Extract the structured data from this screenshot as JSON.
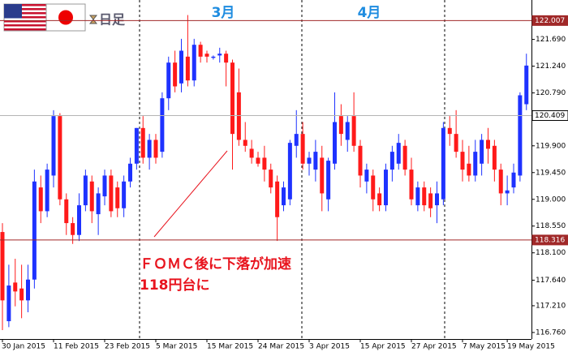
{
  "chart_data": {
    "type": "candlestick",
    "timeframe": "日足",
    "months": [
      "3月",
      "4月"
    ],
    "annotations": [
      "ＦＯＭＣ後に下落が加速",
      "118円台に"
    ],
    "categories": [
      "30 Jan 2015",
      null,
      null,
      null,
      null,
      null,
      null,
      null,
      "11 Feb 2015",
      null,
      null,
      null,
      null,
      null,
      null,
      null,
      "23 Feb 2015",
      null,
      null,
      null,
      null,
      null,
      null,
      null,
      "5 Mar 2015",
      null,
      null,
      null,
      null,
      null,
      null,
      null,
      "15 Mar 2015",
      null,
      null,
      null,
      null,
      null,
      null,
      null,
      "24 Mar 2015",
      null,
      null,
      null,
      null,
      null,
      null,
      null,
      "3 Apr 2015",
      null,
      null,
      null,
      null,
      null,
      null,
      null,
      "15 Apr 2015",
      null,
      null,
      null,
      null,
      null,
      null,
      null,
      "27 Apr 2015",
      null,
      null,
      null,
      null,
      null,
      null,
      null,
      "7 May 2015",
      null,
      null,
      null,
      null,
      null,
      null,
      "19 May 2015",
      null,
      null,
      null
    ],
    "open": [
      118.45,
      116.95,
      117.6,
      117.5,
      117.3,
      117.65,
      119.2,
      118.8,
      119.4,
      120.4,
      119.0,
      118.6,
      118.4,
      118.9,
      119.3,
      118.75,
      119.05,
      119.4,
      119.2,
      118.85,
      119.3,
      119.6,
      120.2,
      119.7,
      120.0,
      119.8,
      120.7,
      121.3,
      120.95,
      121.4,
      121.0,
      121.6,
      121.45,
      121.38,
      121.42,
      121.45,
      121.3,
      120.8,
      120.0,
      119.85,
      119.7,
      119.7,
      119.5,
      119.3,
      118.9,
      119.0,
      119.9,
      120.1,
      119.6,
      119.5,
      119.7,
      119.0,
      119.6,
      120.4,
      120.0,
      120.4,
      119.9,
      119.3,
      119.4,
      119.1,
      118.9,
      119.5,
      119.6,
      119.9,
      119.5,
      118.9,
      119.2,
      119.1,
      118.9,
      119.0,
      120.2,
      120.1,
      119.8,
      119.6,
      119.4,
      119.6,
      120.0,
      119.9,
      119.5,
      119.1,
      119.2,
      119.4,
      120.6
    ],
    "high": [
      118.6,
      117.9,
      118.0,
      117.9,
      117.9,
      119.5,
      119.4,
      119.6,
      120.5,
      120.45,
      119.1,
      118.7,
      119.1,
      119.5,
      119.4,
      119.2,
      119.5,
      119.5,
      119.3,
      119.4,
      119.7,
      120.2,
      120.4,
      120.1,
      120.1,
      120.8,
      121.4,
      121.5,
      121.7,
      122.1,
      121.7,
      121.65,
      121.5,
      121.42,
      121.55,
      121.5,
      121.35,
      121.2,
      120.3,
      120.0,
      119.8,
      119.9,
      119.6,
      119.4,
      119.3,
      120.0,
      120.5,
      120.3,
      119.8,
      120.0,
      119.9,
      119.7,
      120.8,
      120.6,
      120.4,
      120.8,
      120.0,
      119.6,
      119.5,
      119.2,
      119.6,
      119.9,
      120.1,
      120.0,
      119.7,
      119.3,
      119.3,
      119.2,
      119.3,
      120.3,
      120.4,
      120.5,
      120.0,
      119.9,
      120.0,
      120.1,
      120.2,
      120.0,
      119.6,
      119.4,
      119.6,
      120.8,
      121.45
    ],
    "low": [
      116.8,
      116.85,
      117.2,
      117.0,
      117.1,
      117.5,
      118.6,
      118.7,
      119.2,
      118.9,
      118.4,
      118.25,
      118.3,
      118.8,
      118.6,
      118.4,
      118.9,
      118.7,
      118.7,
      118.7,
      119.2,
      119.5,
      119.6,
      119.5,
      119.6,
      119.7,
      120.5,
      120.8,
      120.8,
      120.9,
      120.9,
      121.3,
      121.3,
      121.35,
      121.3,
      120.9,
      119.5,
      119.9,
      119.8,
      119.6,
      119.55,
      119.3,
      119.1,
      118.3,
      118.8,
      118.9,
      119.7,
      119.5,
      119.4,
      119.3,
      118.8,
      118.8,
      119.5,
      119.9,
      119.8,
      119.8,
      119.2,
      119.1,
      118.8,
      118.8,
      118.8,
      119.3,
      119.5,
      119.4,
      118.9,
      118.8,
      118.8,
      118.7,
      118.6,
      118.9,
      119.9,
      119.7,
      119.3,
      119.3,
      119.3,
      119.4,
      119.6,
      119.3,
      118.9,
      118.9,
      119.1,
      119.3,
      120.5
    ],
    "close": [
      117.3,
      117.55,
      117.45,
      117.3,
      117.65,
      119.3,
      118.8,
      119.5,
      120.4,
      119.0,
      118.6,
      118.4,
      118.9,
      119.4,
      118.8,
      119.1,
      119.4,
      118.8,
      118.85,
      119.3,
      119.6,
      120.2,
      119.7,
      120.0,
      119.7,
      120.7,
      121.3,
      120.9,
      121.5,
      121.0,
      121.6,
      121.4,
      121.4,
      121.4,
      121.45,
      121.3,
      120.1,
      120.0,
      119.9,
      119.7,
      119.6,
      119.5,
      119.2,
      118.7,
      119.2,
      119.95,
      120.1,
      119.6,
      119.7,
      119.8,
      119.1,
      119.65,
      120.3,
      120.1,
      120.3,
      119.9,
      119.4,
      119.5,
      119.0,
      118.9,
      119.5,
      119.8,
      119.95,
      119.5,
      119.0,
      119.2,
      118.9,
      118.85,
      119.1,
      120.2,
      120.1,
      119.8,
      119.5,
      119.4,
      119.8,
      120.0,
      119.85,
      119.5,
      119.1,
      119.15,
      119.45,
      120.75,
      121.25
    ],
    "up_color": "#1e32ff",
    "down_color": "#ff1a1a",
    "ylim": [
      116.65,
      122.353
    ],
    "yticks": [
      {
        "value": 116.76,
        "label": "116.760"
      },
      {
        "value": 117.21,
        "label": "117.210"
      },
      {
        "value": 117.64,
        "label": "117.640"
      },
      {
        "value": 118.1,
        "label": "118.100"
      },
      {
        "value": 118.55,
        "label": "118.550"
      },
      {
        "value": 119.0,
        "label": "119.000"
      },
      {
        "value": 119.45,
        "label": "119.450"
      },
      {
        "value": 119.9,
        "label": "119.900"
      },
      {
        "value": 120.79,
        "label": "120.790"
      },
      {
        "value": 121.24,
        "label": "121.240"
      },
      {
        "value": 121.69,
        "label": "121.690"
      }
    ],
    "levels": [
      {
        "value": 122.007,
        "color": "#a02828"
      },
      {
        "value": 118.316,
        "color": "#a02828"
      },
      {
        "value": 120.409,
        "color": "#b4b4b4"
      }
    ]
  }
}
